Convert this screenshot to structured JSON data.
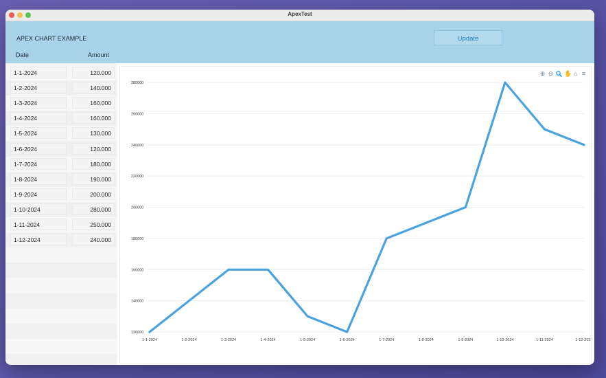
{
  "window": {
    "title": "ApexTest"
  },
  "header": {
    "app_title": "APEX CHART EXAMPLE",
    "update_label": "Update",
    "col_date": "Date",
    "col_amount": "Amount"
  },
  "rows": [
    {
      "date": "1-1-2024",
      "amount": "120.000"
    },
    {
      "date": "1-2-2024",
      "amount": "140.000"
    },
    {
      "date": "1-3-2024",
      "amount": "160.000"
    },
    {
      "date": "1-4-2024",
      "amount": "160.000"
    },
    {
      "date": "1-5-2024",
      "amount": "130.000"
    },
    {
      "date": "1-6-2024",
      "amount": "120.000"
    },
    {
      "date": "1-7-2024",
      "amount": "180.000"
    },
    {
      "date": "1-8-2024",
      "amount": "190.000"
    },
    {
      "date": "1-9-2024",
      "amount": "200.000"
    },
    {
      "date": "1-10-2024",
      "amount": "280.000"
    },
    {
      "date": "1-11-2024",
      "amount": "250.000"
    },
    {
      "date": "1-12-2024",
      "amount": "240.000"
    }
  ],
  "toolbar_icons": [
    "zoom-in-icon",
    "zoom-out-icon",
    "zoom-selection-icon",
    "pan-hand-icon",
    "home-reset-icon",
    "menu-icon"
  ],
  "colors": {
    "line": "#4aa3df",
    "header_bg": "#a8d3e8",
    "accent": "#1e7fbc"
  },
  "chart_data": {
    "type": "line",
    "categories": [
      "1-1-2024",
      "1-2-2024",
      "1-3-2024",
      "1-4-2024",
      "1-5-2024",
      "1-6-2024",
      "1-7-2024",
      "1-8-2024",
      "1-9-2024",
      "1-10-2024",
      "1-11-2024",
      "1-12-2024"
    ],
    "series": [
      {
        "values": [
          120000,
          140000,
          160000,
          160000,
          130000,
          120000,
          180000,
          190000,
          200000,
          280000,
          250000,
          240000
        ]
      }
    ],
    "ylim": [
      120000,
      280000
    ],
    "yticks": [
      "120000",
      "140000",
      "160000",
      "180000",
      "200000",
      "220000",
      "240000",
      "260000",
      "280000"
    ],
    "grid": true
  }
}
